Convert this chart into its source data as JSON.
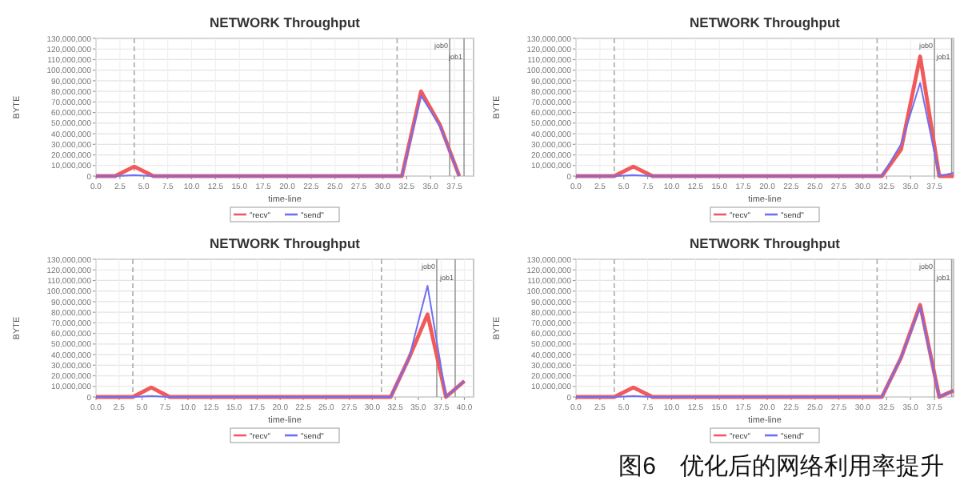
{
  "chart_data": [
    {
      "type": "line",
      "title": "NETWORK Throughput",
      "xlabel": "time-line",
      "ylabel": "BYTE",
      "grid": true,
      "legend": "bottom",
      "xlim": [
        0,
        39.5
      ],
      "ylim": [
        0,
        130000000
      ],
      "xticks": [
        {
          "value": 0,
          "label": "0.0"
        },
        {
          "value": 2.5,
          "label": "2.5"
        },
        {
          "value": 5,
          "label": "5.0"
        },
        {
          "value": 7.5,
          "label": "7.5"
        },
        {
          "value": 10,
          "label": "10.0"
        },
        {
          "value": 12.5,
          "label": "12.5"
        },
        {
          "value": 15,
          "label": "15.0"
        },
        {
          "value": 17.5,
          "label": "17.5"
        },
        {
          "value": 20,
          "label": "20.0"
        },
        {
          "value": 22.5,
          "label": "22.5"
        },
        {
          "value": 25,
          "label": "25.0"
        },
        {
          "value": 27.5,
          "label": "27.5"
        },
        {
          "value": 30,
          "label": "30.0"
        },
        {
          "value": 32.5,
          "label": "32.5"
        },
        {
          "value": 35,
          "label": "35.0"
        },
        {
          "value": 37.5,
          "label": "37.5"
        }
      ],
      "yticks": [
        {
          "value": 0,
          "label": "0"
        },
        {
          "value": 10000000,
          "label": "10,000,000"
        },
        {
          "value": 20000000,
          "label": "20,000,000"
        },
        {
          "value": 30000000,
          "label": "30,000,000"
        },
        {
          "value": 40000000,
          "label": "40,000,000"
        },
        {
          "value": 50000000,
          "label": "50,000,000"
        },
        {
          "value": 60000000,
          "label": "60,000,000"
        },
        {
          "value": 70000000,
          "label": "70,000,000"
        },
        {
          "value": 80000000,
          "label": "80,000,000"
        },
        {
          "value": 90000000,
          "label": "90,000,000"
        },
        {
          "value": 100000000,
          "label": "100,000,000"
        },
        {
          "value": 110000000,
          "label": "110,000,000"
        },
        {
          "value": 120000000,
          "label": "120,000,000"
        },
        {
          "value": 130000000,
          "label": "130,000,000"
        }
      ],
      "x": [
        0,
        2,
        4,
        6,
        8,
        10,
        12,
        14,
        16,
        18,
        20,
        22,
        24,
        26,
        28,
        30,
        32,
        34,
        36,
        38
      ],
      "series": [
        {
          "name": "\"recv\"",
          "color": "#f05a5a",
          "values": [
            0,
            0,
            9000000,
            0,
            0,
            0,
            0,
            0,
            0,
            0,
            0,
            0,
            0,
            0,
            0,
            0,
            0,
            80000000,
            48000000,
            0
          ]
        },
        {
          "name": "\"send\"",
          "color": "#6f6ff5",
          "values": [
            0,
            0,
            1000000,
            0,
            0,
            0,
            0,
            0,
            0,
            0,
            0,
            0,
            0,
            0,
            0,
            0,
            0,
            76000000,
            47000000,
            0
          ]
        }
      ],
      "ref_lines": [
        {
          "axis": "x",
          "value": 4,
          "line_style": "dashed",
          "color": "#aaaaaa"
        },
        {
          "axis": "x",
          "value": 31.5,
          "line_style": "dashed",
          "color": "#aaaaaa"
        },
        {
          "axis": "x",
          "value": 37,
          "label": "job0",
          "line_style": "solid",
          "color": "#999999"
        },
        {
          "axis": "x",
          "value": 38.5,
          "label": "job1",
          "line_style": "solid",
          "color": "#999999"
        }
      ]
    },
    {
      "type": "line",
      "title": "NETWORK Throughput",
      "xlabel": "time-line",
      "ylabel": "BYTE",
      "grid": true,
      "legend": "bottom",
      "xlim": [
        0,
        39.5
      ],
      "ylim": [
        0,
        130000000
      ],
      "xticks": [
        {
          "value": 0,
          "label": "0.0"
        },
        {
          "value": 2.5,
          "label": "2.5"
        },
        {
          "value": 5,
          "label": "5.0"
        },
        {
          "value": 7.5,
          "label": "7.5"
        },
        {
          "value": 10,
          "label": "10.0"
        },
        {
          "value": 12.5,
          "label": "12.5"
        },
        {
          "value": 15,
          "label": "15.0"
        },
        {
          "value": 17.5,
          "label": "17.5"
        },
        {
          "value": 20,
          "label": "20.0"
        },
        {
          "value": 22.5,
          "label": "22.5"
        },
        {
          "value": 25,
          "label": "25.0"
        },
        {
          "value": 27.5,
          "label": "27.5"
        },
        {
          "value": 30,
          "label": "30.0"
        },
        {
          "value": 32.5,
          "label": "32.5"
        },
        {
          "value": 35,
          "label": "35.0"
        },
        {
          "value": 37.5,
          "label": "37.5"
        }
      ],
      "yticks": [
        {
          "value": 0,
          "label": "0"
        },
        {
          "value": 10000000,
          "label": "10,000,000"
        },
        {
          "value": 20000000,
          "label": "20,000,000"
        },
        {
          "value": 30000000,
          "label": "30,000,000"
        },
        {
          "value": 40000000,
          "label": "40,000,000"
        },
        {
          "value": 50000000,
          "label": "50,000,000"
        },
        {
          "value": 60000000,
          "label": "60,000,000"
        },
        {
          "value": 70000000,
          "label": "70,000,000"
        },
        {
          "value": 80000000,
          "label": "80,000,000"
        },
        {
          "value": 90000000,
          "label": "90,000,000"
        },
        {
          "value": 100000000,
          "label": "100,000,000"
        },
        {
          "value": 110000000,
          "label": "110,000,000"
        },
        {
          "value": 120000000,
          "label": "120,000,000"
        },
        {
          "value": 130000000,
          "label": "130,000,000"
        }
      ],
      "x": [
        0,
        2,
        4,
        6,
        8,
        10,
        12,
        14,
        16,
        18,
        20,
        22,
        24,
        26,
        28,
        30,
        32,
        34,
        36,
        38,
        39.5
      ],
      "series": [
        {
          "name": "\"recv\"",
          "color": "#f05a5a",
          "values": [
            0,
            0,
            0,
            9000000,
            0,
            0,
            0,
            0,
            0,
            0,
            0,
            0,
            0,
            0,
            0,
            0,
            0,
            25000000,
            113000000,
            0,
            0
          ]
        },
        {
          "name": "\"send\"",
          "color": "#6f6ff5",
          "values": [
            0,
            0,
            0,
            1000000,
            0,
            0,
            0,
            0,
            0,
            0,
            0,
            0,
            0,
            0,
            0,
            0,
            0,
            30000000,
            88000000,
            0,
            3000000
          ]
        }
      ],
      "ref_lines": [
        {
          "axis": "x",
          "value": 4,
          "line_style": "dashed",
          "color": "#aaaaaa"
        },
        {
          "axis": "x",
          "value": 31.5,
          "line_style": "dashed",
          "color": "#aaaaaa"
        },
        {
          "axis": "x",
          "value": 37.5,
          "label": "job0",
          "line_style": "solid",
          "color": "#999999"
        },
        {
          "axis": "x",
          "value": 39.3,
          "label": "job1",
          "line_style": "solid",
          "color": "#999999"
        }
      ]
    },
    {
      "type": "line",
      "title": "NETWORK Throughput",
      "xlabel": "time-line",
      "ylabel": "BYTE",
      "grid": true,
      "legend": "bottom",
      "xlim": [
        0,
        41
      ],
      "ylim": [
        0,
        130000000
      ],
      "xticks": [
        {
          "value": 0,
          "label": "0.0"
        },
        {
          "value": 2.5,
          "label": "2.5"
        },
        {
          "value": 5,
          "label": "5.0"
        },
        {
          "value": 7.5,
          "label": "7.5"
        },
        {
          "value": 10,
          "label": "10.0"
        },
        {
          "value": 12.5,
          "label": "12.5"
        },
        {
          "value": 15,
          "label": "15.0"
        },
        {
          "value": 17.5,
          "label": "17.5"
        },
        {
          "value": 20,
          "label": "20.0"
        },
        {
          "value": 22.5,
          "label": "22.5"
        },
        {
          "value": 25,
          "label": "25.0"
        },
        {
          "value": 27.5,
          "label": "27.5"
        },
        {
          "value": 30,
          "label": "30.0"
        },
        {
          "value": 32.5,
          "label": "32.5"
        },
        {
          "value": 35,
          "label": "35.0"
        },
        {
          "value": 37.5,
          "label": "37.5"
        },
        {
          "value": 40,
          "label": "40.0"
        }
      ],
      "yticks": [
        {
          "value": 0,
          "label": "0"
        },
        {
          "value": 10000000,
          "label": "10,000,000"
        },
        {
          "value": 20000000,
          "label": "20,000,000"
        },
        {
          "value": 30000000,
          "label": "30,000,000"
        },
        {
          "value": 40000000,
          "label": "40,000,000"
        },
        {
          "value": 50000000,
          "label": "50,000,000"
        },
        {
          "value": 60000000,
          "label": "60,000,000"
        },
        {
          "value": 70000000,
          "label": "70,000,000"
        },
        {
          "value": 80000000,
          "label": "80,000,000"
        },
        {
          "value": 90000000,
          "label": "90,000,000"
        },
        {
          "value": 100000000,
          "label": "100,000,000"
        },
        {
          "value": 110000000,
          "label": "110,000,000"
        },
        {
          "value": 120000000,
          "label": "120,000,000"
        },
        {
          "value": 130000000,
          "label": "130,000,000"
        }
      ],
      "x": [
        0,
        2,
        4,
        6,
        8,
        10,
        12,
        14,
        16,
        18,
        20,
        22,
        24,
        26,
        28,
        30,
        32,
        34,
        36,
        38,
        40
      ],
      "series": [
        {
          "name": "\"recv\"",
          "color": "#f05a5a",
          "values": [
            0,
            0,
            0,
            9000000,
            0,
            0,
            0,
            0,
            0,
            0,
            0,
            0,
            0,
            0,
            0,
            0,
            0,
            37000000,
            78000000,
            0,
            15000000
          ]
        },
        {
          "name": "\"send\"",
          "color": "#6f6ff5",
          "values": [
            0,
            0,
            0,
            1000000,
            0,
            0,
            0,
            0,
            0,
            0,
            0,
            0,
            0,
            0,
            0,
            0,
            0,
            37000000,
            105000000,
            0,
            15000000
          ]
        }
      ],
      "ref_lines": [
        {
          "axis": "x",
          "value": 4,
          "line_style": "dashed",
          "color": "#aaaaaa"
        },
        {
          "axis": "x",
          "value": 31,
          "line_style": "dashed",
          "color": "#aaaaaa"
        },
        {
          "axis": "x",
          "value": 37,
          "label": "job0",
          "line_style": "solid",
          "color": "#999999"
        },
        {
          "axis": "x",
          "value": 39,
          "label": "job1",
          "line_style": "solid",
          "color": "#999999"
        }
      ]
    },
    {
      "type": "line",
      "title": "NETWORK Throughput",
      "xlabel": "time-line",
      "ylabel": "BYTE",
      "grid": true,
      "legend": "bottom",
      "xlim": [
        0,
        39.5
      ],
      "ylim": [
        0,
        130000000
      ],
      "xticks": [
        {
          "value": 0,
          "label": "0.0"
        },
        {
          "value": 2.5,
          "label": "2.5"
        },
        {
          "value": 5,
          "label": "5.0"
        },
        {
          "value": 7.5,
          "label": "7.5"
        },
        {
          "value": 10,
          "label": "10.0"
        },
        {
          "value": 12.5,
          "label": "12.5"
        },
        {
          "value": 15,
          "label": "15.0"
        },
        {
          "value": 17.5,
          "label": "17.5"
        },
        {
          "value": 20,
          "label": "20.0"
        },
        {
          "value": 22.5,
          "label": "22.5"
        },
        {
          "value": 25,
          "label": "25.0"
        },
        {
          "value": 27.5,
          "label": "27.5"
        },
        {
          "value": 30,
          "label": "30.0"
        },
        {
          "value": 32.5,
          "label": "32.5"
        },
        {
          "value": 35,
          "label": "35.0"
        },
        {
          "value": 37.5,
          "label": "37.5"
        }
      ],
      "yticks": [
        {
          "value": 0,
          "label": "0"
        },
        {
          "value": 10000000,
          "label": "10,000,000"
        },
        {
          "value": 20000000,
          "label": "20,000,000"
        },
        {
          "value": 30000000,
          "label": "30,000,000"
        },
        {
          "value": 40000000,
          "label": "40,000,000"
        },
        {
          "value": 50000000,
          "label": "50,000,000"
        },
        {
          "value": 60000000,
          "label": "60,000,000"
        },
        {
          "value": 70000000,
          "label": "70,000,000"
        },
        {
          "value": 80000000,
          "label": "80,000,000"
        },
        {
          "value": 90000000,
          "label": "90,000,000"
        },
        {
          "value": 100000000,
          "label": "100,000,000"
        },
        {
          "value": 110000000,
          "label": "110,000,000"
        },
        {
          "value": 120000000,
          "label": "120,000,000"
        },
        {
          "value": 130000000,
          "label": "130,000,000"
        }
      ],
      "x": [
        0,
        2,
        4,
        6,
        8,
        10,
        12,
        14,
        16,
        18,
        20,
        22,
        24,
        26,
        28,
        30,
        32,
        34,
        36,
        38,
        39.5
      ],
      "series": [
        {
          "name": "\"recv\"",
          "color": "#f05a5a",
          "values": [
            0,
            0,
            0,
            9000000,
            0,
            0,
            0,
            0,
            0,
            0,
            0,
            0,
            0,
            0,
            0,
            0,
            0,
            37000000,
            87000000,
            0,
            6000000
          ]
        },
        {
          "name": "\"send\"",
          "color": "#6f6ff5",
          "values": [
            0,
            0,
            0,
            1000000,
            0,
            0,
            0,
            0,
            0,
            0,
            0,
            0,
            0,
            0,
            0,
            0,
            0,
            37000000,
            85000000,
            0,
            6000000
          ]
        }
      ],
      "ref_lines": [
        {
          "axis": "x",
          "value": 4,
          "line_style": "dashed",
          "color": "#aaaaaa"
        },
        {
          "axis": "x",
          "value": 31.5,
          "line_style": "dashed",
          "color": "#aaaaaa"
        },
        {
          "axis": "x",
          "value": 37.5,
          "label": "job0",
          "line_style": "solid",
          "color": "#999999"
        },
        {
          "axis": "x",
          "value": 39.3,
          "label": "job1",
          "line_style": "solid",
          "color": "#999999"
        }
      ],
      "annotations": [
        "图6　优化后的网络利用率提升"
      ]
    }
  ]
}
